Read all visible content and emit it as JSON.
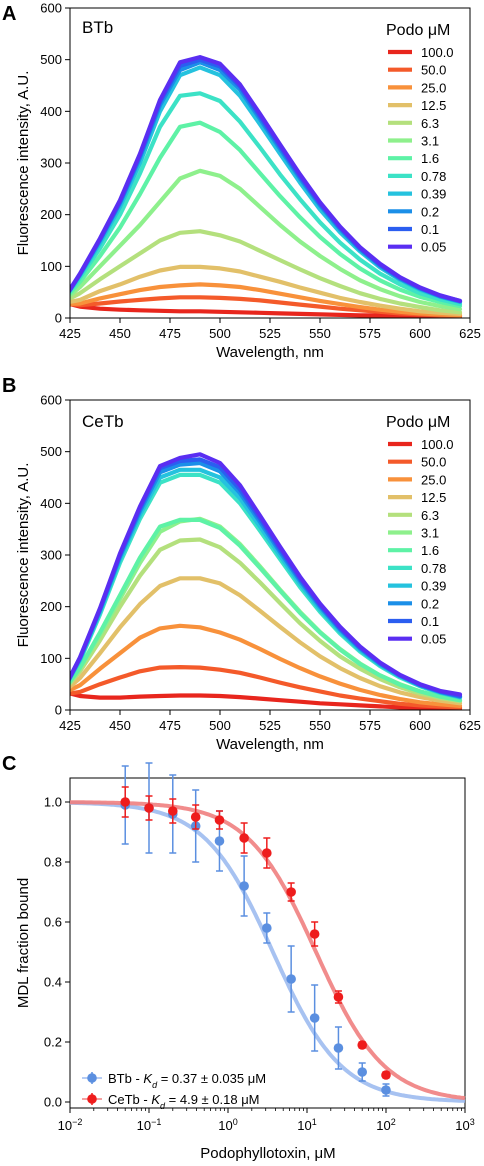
{
  "panels": [
    {
      "letter": "A",
      "chart_data": {
        "type": "line",
        "title": "BTb",
        "xlabel": "Wavelength, nm",
        "ylabel": "Fluorescence intensity, A.U.",
        "xlim": [
          425,
          625
        ],
        "ylim": [
          0,
          600
        ],
        "xticks": [
          "425",
          "450",
          "475",
          "500",
          "525",
          "550",
          "575",
          "600",
          "625"
        ],
        "yticks": [
          "0",
          "100",
          "200",
          "300",
          "400",
          "500",
          "600"
        ],
        "legend_title": "Podo μM",
        "legend_position": "top-right",
        "x": [
          422,
          430,
          440,
          450,
          460,
          470,
          480,
          490,
          500,
          510,
          520,
          530,
          540,
          550,
          560,
          570,
          580,
          590,
          600,
          610,
          620
        ],
        "series": [
          {
            "name": "100.0",
            "color": "#e8261d",
            "values": [
              30,
              22,
              18,
              16,
              15,
              14,
              13,
              13,
              12,
              11,
              10,
              9,
              8,
              7,
              6,
              5,
              5,
              4,
              4,
              3,
              3
            ]
          },
          {
            "name": "50.0",
            "color": "#f45a2a",
            "values": [
              28,
              25,
              28,
              32,
              35,
              38,
              40,
              40,
              39,
              37,
              34,
              30,
              26,
              22,
              18,
              15,
              12,
              9,
              7,
              5,
              4
            ]
          },
          {
            "name": "25.0",
            "color": "#f8913b",
            "values": [
              27,
              28,
              38,
              46,
              54,
              60,
              63,
              65,
              63,
              60,
              54,
              47,
              40,
              33,
              27,
              21,
              16,
              12,
              9,
              7,
              5
            ]
          },
          {
            "name": "12.5",
            "color": "#e2c069",
            "values": [
              29,
              35,
              52,
              65,
              80,
              92,
              99,
              99,
              96,
              90,
              80,
              70,
              59,
              49,
              39,
              31,
              24,
              18,
              13,
              10,
              8
            ]
          },
          {
            "name": "6.3",
            "color": "#b4e07d",
            "values": [
              32,
              48,
              75,
              100,
              125,
              150,
              165,
              168,
              160,
              148,
              130,
              112,
              94,
              77,
              62,
              48,
              37,
              28,
              21,
              15,
              11
            ]
          },
          {
            "name": "3.1",
            "color": "#8ef08c",
            "values": [
              34,
              60,
              100,
              140,
              180,
              225,
              270,
              285,
              275,
              250,
              215,
              180,
              148,
              120,
              95,
              73,
              56,
              42,
              31,
              23,
              17
            ]
          },
          {
            "name": "1.6",
            "color": "#5ef2a6",
            "values": [
              35,
              70,
              120,
              175,
              240,
              310,
              370,
              378,
              360,
              325,
              280,
              236,
              195,
              157,
              124,
              96,
              73,
              55,
              41,
              31,
              23
            ]
          },
          {
            "name": "0.78",
            "color": "#3ce2c6",
            "values": [
              36,
              78,
              135,
              200,
              280,
              370,
              430,
              435,
              420,
              380,
              330,
              278,
              230,
              185,
              146,
              113,
              86,
              65,
              48,
              36,
              27
            ]
          },
          {
            "name": "0.39",
            "color": "#25c2de",
            "values": [
              37,
              82,
              145,
              215,
              300,
              400,
              470,
              485,
              470,
              430,
              375,
              318,
              262,
              210,
              166,
              129,
              98,
              74,
              55,
              41,
              31
            ]
          },
          {
            "name": "0.2",
            "color": "#1b8fe8",
            "values": [
              37,
              84,
              150,
              222,
              310,
              412,
              480,
              495,
              480,
              442,
              385,
              327,
              270,
              218,
              172,
              133,
              101,
              76,
              57,
              42,
              32
            ]
          },
          {
            "name": "0.1",
            "color": "#2b5ef0",
            "values": [
              37,
              85,
              152,
              225,
              315,
              418,
              488,
              500,
              487,
              448,
              390,
              332,
              274,
              221,
              175,
              135,
              103,
              78,
              58,
              43,
              33
            ]
          },
          {
            "name": "0.05",
            "color": "#5a2ef2",
            "values": [
              37,
              86,
              154,
              228,
              318,
              422,
              495,
              505,
              492,
              452,
              395,
              336,
              278,
              224,
              177,
              137,
              105,
              79,
              59,
              44,
              33
            ]
          }
        ]
      }
    },
    {
      "letter": "B",
      "chart_data": {
        "type": "line",
        "title": "CeTb",
        "xlabel": "Wavelength, nm",
        "ylabel": "Fluorescence intensity, A.U.",
        "xlim": [
          425,
          625
        ],
        "ylim": [
          0,
          600
        ],
        "xticks": [
          "425",
          "450",
          "475",
          "500",
          "525",
          "550",
          "575",
          "600",
          "625"
        ],
        "yticks": [
          "0",
          "100",
          "200",
          "300",
          "400",
          "500",
          "600"
        ],
        "legend_title": "Podo μM",
        "legend_position": "top-right",
        "x": [
          422,
          430,
          440,
          450,
          460,
          470,
          480,
          490,
          500,
          510,
          520,
          530,
          540,
          550,
          560,
          570,
          580,
          590,
          600,
          610,
          620
        ],
        "series": [
          {
            "name": "100.0",
            "color": "#e8261d",
            "values": [
              35,
              27,
              24,
              24,
              26,
              27,
              28,
              28,
              27,
              25,
              22,
              19,
              16,
              13,
              11,
              9,
              7,
              5,
              4,
              3,
              3
            ]
          },
          {
            "name": "50.0",
            "color": "#f45a2a",
            "values": [
              30,
              35,
              50,
              63,
              75,
              82,
              83,
              82,
              78,
              72,
              63,
              53,
              44,
              36,
              28,
              22,
              17,
              12,
              9,
              7,
              5
            ]
          },
          {
            "name": "25.0",
            "color": "#f8913b",
            "values": [
              33,
              48,
              80,
              110,
              140,
              158,
              163,
              160,
              150,
              136,
              118,
              99,
              81,
              65,
              51,
              39,
              29,
              21,
              15,
              11,
              8
            ]
          },
          {
            "name": "12.5",
            "color": "#e2c069",
            "values": [
              35,
              62,
              110,
              160,
              205,
              240,
              255,
              255,
              245,
              222,
              192,
              161,
              131,
              104,
              81,
              62,
              46,
              34,
              25,
              18,
              13
            ]
          },
          {
            "name": "6.3",
            "color": "#b4e07d",
            "values": [
              37,
              75,
              135,
              200,
              260,
              310,
              328,
              330,
              315,
              285,
              247,
              207,
              168,
              134,
              104,
              80,
              60,
              44,
              32,
              23,
              17
            ]
          },
          {
            "name": "3.1",
            "color": "#8ef08c",
            "values": [
              38,
              80,
              145,
              215,
              285,
              345,
              365,
              370,
              355,
              321,
              278,
              233,
              190,
              151,
              118,
              90,
              67,
              50,
              36,
              26,
              19
            ]
          },
          {
            "name": "1.6",
            "color": "#5ef2a6",
            "values": [
              39,
              82,
              150,
              222,
              295,
              355,
              368,
              368,
              352,
              318,
              275,
              231,
              188,
              150,
              117,
              89,
              67,
              49,
              36,
              26,
              19
            ]
          },
          {
            "name": "0.78",
            "color": "#3ce2c6",
            "values": [
              40,
              95,
              185,
              285,
              370,
              440,
              455,
              455,
              440,
              400,
              347,
              292,
              238,
              190,
              148,
              113,
              85,
              63,
              46,
              33,
              24
            ]
          },
          {
            "name": "0.39",
            "color": "#25c2de",
            "values": [
              41,
              98,
              190,
              292,
              378,
              450,
              465,
              465,
              450,
              410,
              355,
              299,
              244,
              195,
              152,
              116,
              87,
              65,
              47,
              34,
              25
            ]
          },
          {
            "name": "0.2",
            "color": "#1b8fe8",
            "values": [
              41,
              100,
              193,
              297,
              385,
              460,
              475,
              478,
              462,
              420,
              364,
              306,
              250,
              200,
              156,
              119,
              89,
              66,
              48,
              35,
              26
            ]
          },
          {
            "name": "0.1",
            "color": "#2b5ef0",
            "values": [
              41,
              101,
              195,
              300,
              390,
              468,
              482,
              485,
              470,
              427,
              370,
              311,
              254,
              203,
              158,
              121,
              91,
              67,
              49,
              36,
              27
            ]
          },
          {
            "name": "0.05",
            "color": "#5a2ef2",
            "values": [
              41,
              102,
              197,
              303,
              394,
              472,
              488,
              495,
              478,
              435,
              376,
              316,
              258,
              206,
              161,
              123,
              92,
              68,
              50,
              37,
              30
            ]
          }
        ]
      }
    },
    {
      "letter": "C",
      "chart_data": {
        "type": "scatter",
        "xlabel": "Podophyllotoxin, μM",
        "ylabel": "MDL fraction bound",
        "xscale": "log",
        "xlim": [
          0.01,
          1000
        ],
        "ylim": [
          -0.02,
          1.08
        ],
        "xticks": [
          {
            "base": "10",
            "exp": "−2"
          },
          {
            "base": "10",
            "exp": "−1"
          },
          {
            "base": "10",
            "exp": "0"
          },
          {
            "base": "10",
            "exp": "1"
          },
          {
            "base": "10",
            "exp": "2"
          },
          {
            "base": "10",
            "exp": "3"
          }
        ],
        "yticks": [
          "0.0",
          "0.2",
          "0.4",
          "0.6",
          "0.8",
          "1.0"
        ],
        "legend_position": "bottom-left",
        "series": [
          {
            "name_prefix": "BTb - ",
            "kd_symbol": "K",
            "kd_sub": "d",
            "name_suffix": " = 0.37 ± 0.035 μM",
            "color": "#5b8fe0",
            "fit_color": "#9dbbf0",
            "kd": 3.7,
            "x": [
              0.05,
              0.1,
              0.2,
              0.39,
              0.78,
              1.6,
              3.1,
              6.3,
              12.5,
              25,
              50,
              100
            ],
            "y": [
              0.99,
              0.98,
              0.96,
              0.92,
              0.87,
              0.72,
              0.58,
              0.41,
              0.28,
              0.18,
              0.1,
              0.04
            ],
            "err": [
              0.13,
              0.15,
              0.13,
              0.12,
              0.1,
              0.1,
              0.05,
              0.11,
              0.11,
              0.07,
              0.03,
              0.02
            ]
          },
          {
            "name_prefix": "CeTb - ",
            "kd_symbol": "K",
            "kd_sub": "d",
            "name_suffix": " = 4.9 ± 0.18 μM",
            "color": "#ee1c1c",
            "fit_color": "#f08080",
            "kd": 13,
            "x": [
              0.05,
              0.1,
              0.2,
              0.39,
              0.78,
              1.6,
              3.1,
              6.3,
              12.5,
              25,
              50,
              100
            ],
            "y": [
              1.0,
              0.98,
              0.97,
              0.95,
              0.94,
              0.88,
              0.83,
              0.7,
              0.56,
              0.35,
              0.19,
              0.09
            ],
            "err": [
              0.05,
              0.04,
              0.04,
              0.04,
              0.03,
              0.05,
              0.05,
              0.03,
              0.04,
              0.02,
              0.01,
              0.01
            ]
          }
        ]
      }
    }
  ]
}
